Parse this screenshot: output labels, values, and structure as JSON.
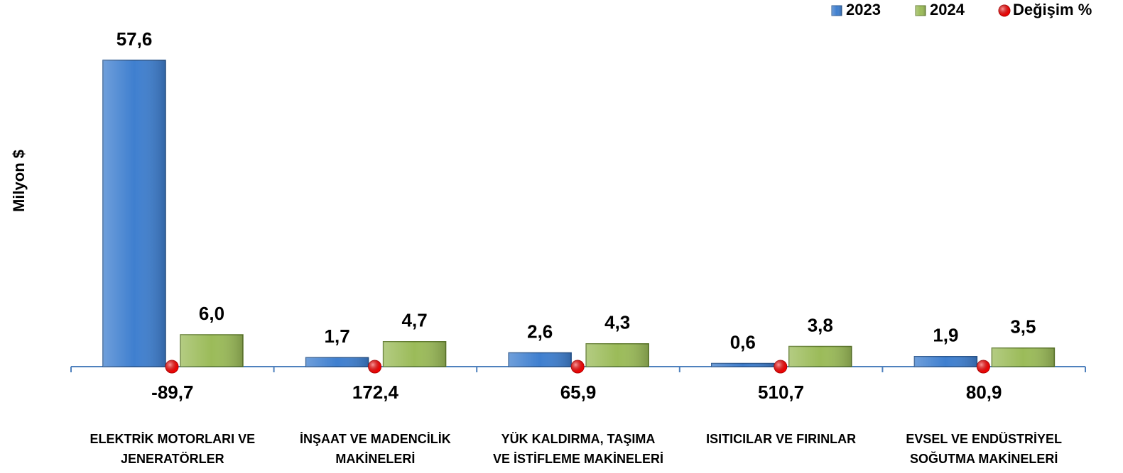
{
  "chart_data": {
    "type": "bar",
    "y_label": "Milyon $",
    "categories": [
      "ELEKTRİK MOTORLARI VE\nJENERATÖRLER",
      "İNŞAAT VE MADENCİLİK\nMAKİNELERİ",
      "YÜK KALDIRMA,  TAŞIMA\nVE  İSTİFLEME MAKİNELERİ",
      "ISITICILAR VE FIRINLAR",
      "EVSEL VE ENDÜSTRİYEL\nSOĞUTMA MAKİNELERİ"
    ],
    "series": [
      {
        "name": "2023",
        "color": "#3f7fcf",
        "values": [
          57.6,
          1.7,
          2.6,
          0.6,
          1.9
        ],
        "value_labels": [
          "57,6",
          "1,7",
          "2,6",
          "0,6",
          "1,9"
        ]
      },
      {
        "name": "2024",
        "color": "#9bbb59",
        "values": [
          6.0,
          4.7,
          4.3,
          3.8,
          3.5
        ],
        "value_labels": [
          "6,0",
          "4,7",
          "4,3",
          "3,8",
          "3,5"
        ]
      },
      {
        "name": "Değişim %",
        "color": "#ff0000",
        "marker": "circle",
        "values": [
          -89.7,
          172.4,
          65.9,
          510.7,
          80.9
        ],
        "value_labels": [
          "-89,7",
          "172,4",
          "65,9",
          "510,7",
          "80,9"
        ]
      }
    ],
    "ylim": [
      0,
      60
    ],
    "grid": false,
    "legend": "top-right"
  }
}
